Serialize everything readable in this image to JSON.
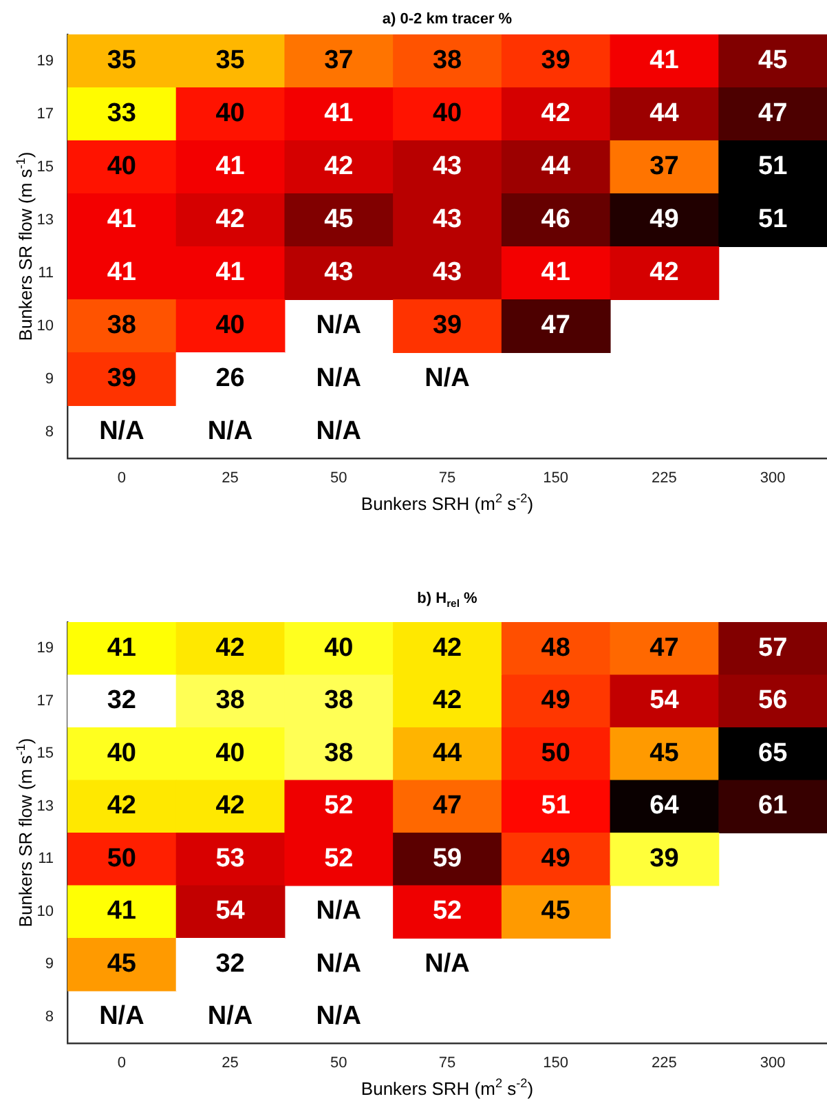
{
  "chart_data": [
    {
      "type": "heatmap",
      "title": "a) 0-2 km tracer %",
      "xlabel": "Bunkers SRH (m$^{2}$ s$^{-2}$)",
      "ylabel": "Bunkers SR flow (m s$^{-1}$)",
      "categories": [
        "0",
        "25",
        "50",
        "75",
        "150",
        "225",
        "300"
      ],
      "y_categories": [
        "19",
        "17",
        "15",
        "13",
        "11",
        "10",
        "9",
        "8"
      ],
      "cells": [
        [
          35,
          35,
          37,
          38,
          39,
          41,
          45
        ],
        [
          33,
          40,
          41,
          40,
          42,
          44,
          47
        ],
        [
          40,
          41,
          42,
          43,
          44,
          37,
          51
        ],
        [
          41,
          42,
          45,
          43,
          46,
          49,
          51
        ],
        [
          41,
          41,
          43,
          43,
          41,
          42,
          null
        ],
        [
          38,
          40,
          null,
          39,
          47,
          null,
          null
        ],
        [
          39,
          26,
          null,
          null,
          null,
          null,
          null
        ],
        [
          null,
          null,
          null,
          null,
          null,
          null,
          null
        ]
      ],
      "cell_labels": [
        [
          "35",
          "35",
          "37",
          "38",
          "39",
          "41",
          "45"
        ],
        [
          "33",
          "40",
          "41",
          "40",
          "42",
          "44",
          "47"
        ],
        [
          "40",
          "41",
          "42",
          "43",
          "44",
          "37",
          "51"
        ],
        [
          "41",
          "42",
          "45",
          "43",
          "46",
          "49",
          "51"
        ],
        [
          "41",
          "41",
          "43",
          "43",
          "41",
          "42",
          null
        ],
        [
          "38",
          "40",
          "N/A",
          "39",
          "47",
          null,
          null
        ],
        [
          "39",
          "26",
          "N/A",
          "N/A",
          null,
          null,
          null
        ],
        [
          "N/A",
          "N/A",
          "N/A",
          null,
          null,
          null,
          null
        ]
      ]
    },
    {
      "type": "heatmap",
      "title": "b) H$_{rel}$ %",
      "xlabel": "Bunkers SRH (m$^{2}$ s$^{-2}$)",
      "ylabel": "Bunkers SR flow (m s$^{-1}$)",
      "categories": [
        "0",
        "25",
        "50",
        "75",
        "150",
        "225",
        "300"
      ],
      "y_categories": [
        "19",
        "17",
        "15",
        "13",
        "11",
        "10",
        "9",
        "8"
      ],
      "cells": [
        [
          41,
          42,
          40,
          42,
          48,
          47,
          57
        ],
        [
          32,
          38,
          38,
          42,
          49,
          54,
          56
        ],
        [
          40,
          40,
          38,
          44,
          50,
          45,
          65
        ],
        [
          42,
          42,
          52,
          47,
          51,
          64,
          61
        ],
        [
          50,
          53,
          52,
          59,
          49,
          39,
          null
        ],
        [
          41,
          54,
          null,
          52,
          45,
          null,
          null
        ],
        [
          45,
          32,
          null,
          null,
          null,
          null,
          null
        ],
        [
          null,
          null,
          null,
          null,
          null,
          null,
          null
        ]
      ],
      "cell_labels": [
        [
          "41",
          "42",
          "40",
          "42",
          "48",
          "47",
          "57"
        ],
        [
          "32",
          "38",
          "38",
          "42",
          "49",
          "54",
          "56"
        ],
        [
          "40",
          "40",
          "38",
          "44",
          "50",
          "45",
          "65"
        ],
        [
          "42",
          "42",
          "52",
          "47",
          "51",
          "64",
          "61"
        ],
        [
          "50",
          "53",
          "52",
          "59",
          "49",
          "39",
          null
        ],
        [
          "41",
          "54",
          "N/A",
          "52",
          "45",
          null,
          null
        ],
        [
          "45",
          "32",
          "N/A",
          "N/A",
          null,
          null,
          null
        ],
        [
          "N/A",
          "N/A",
          "N/A",
          null,
          null,
          null,
          null
        ]
      ]
    }
  ]
}
